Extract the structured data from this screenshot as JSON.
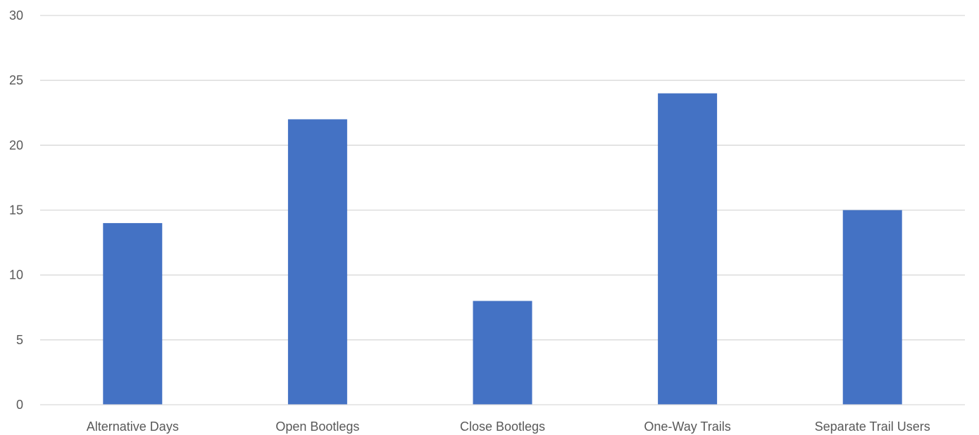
{
  "chart_data": {
    "type": "bar",
    "categories": [
      "Alternative Days",
      "Open Bootlegs",
      "Close Bootlegs",
      "One-Way Trails",
      "Separate Trail Users"
    ],
    "values": [
      14,
      22,
      8,
      24,
      15
    ],
    "yticks": [
      "0",
      "5",
      "10",
      "15",
      "20",
      "25",
      "30"
    ],
    "ylim": [
      0,
      30
    ],
    "grid": true,
    "legend": "none",
    "colors": {
      "bar": "#4472C4",
      "grid": "#D9D9D9",
      "text": "#595959"
    }
  }
}
